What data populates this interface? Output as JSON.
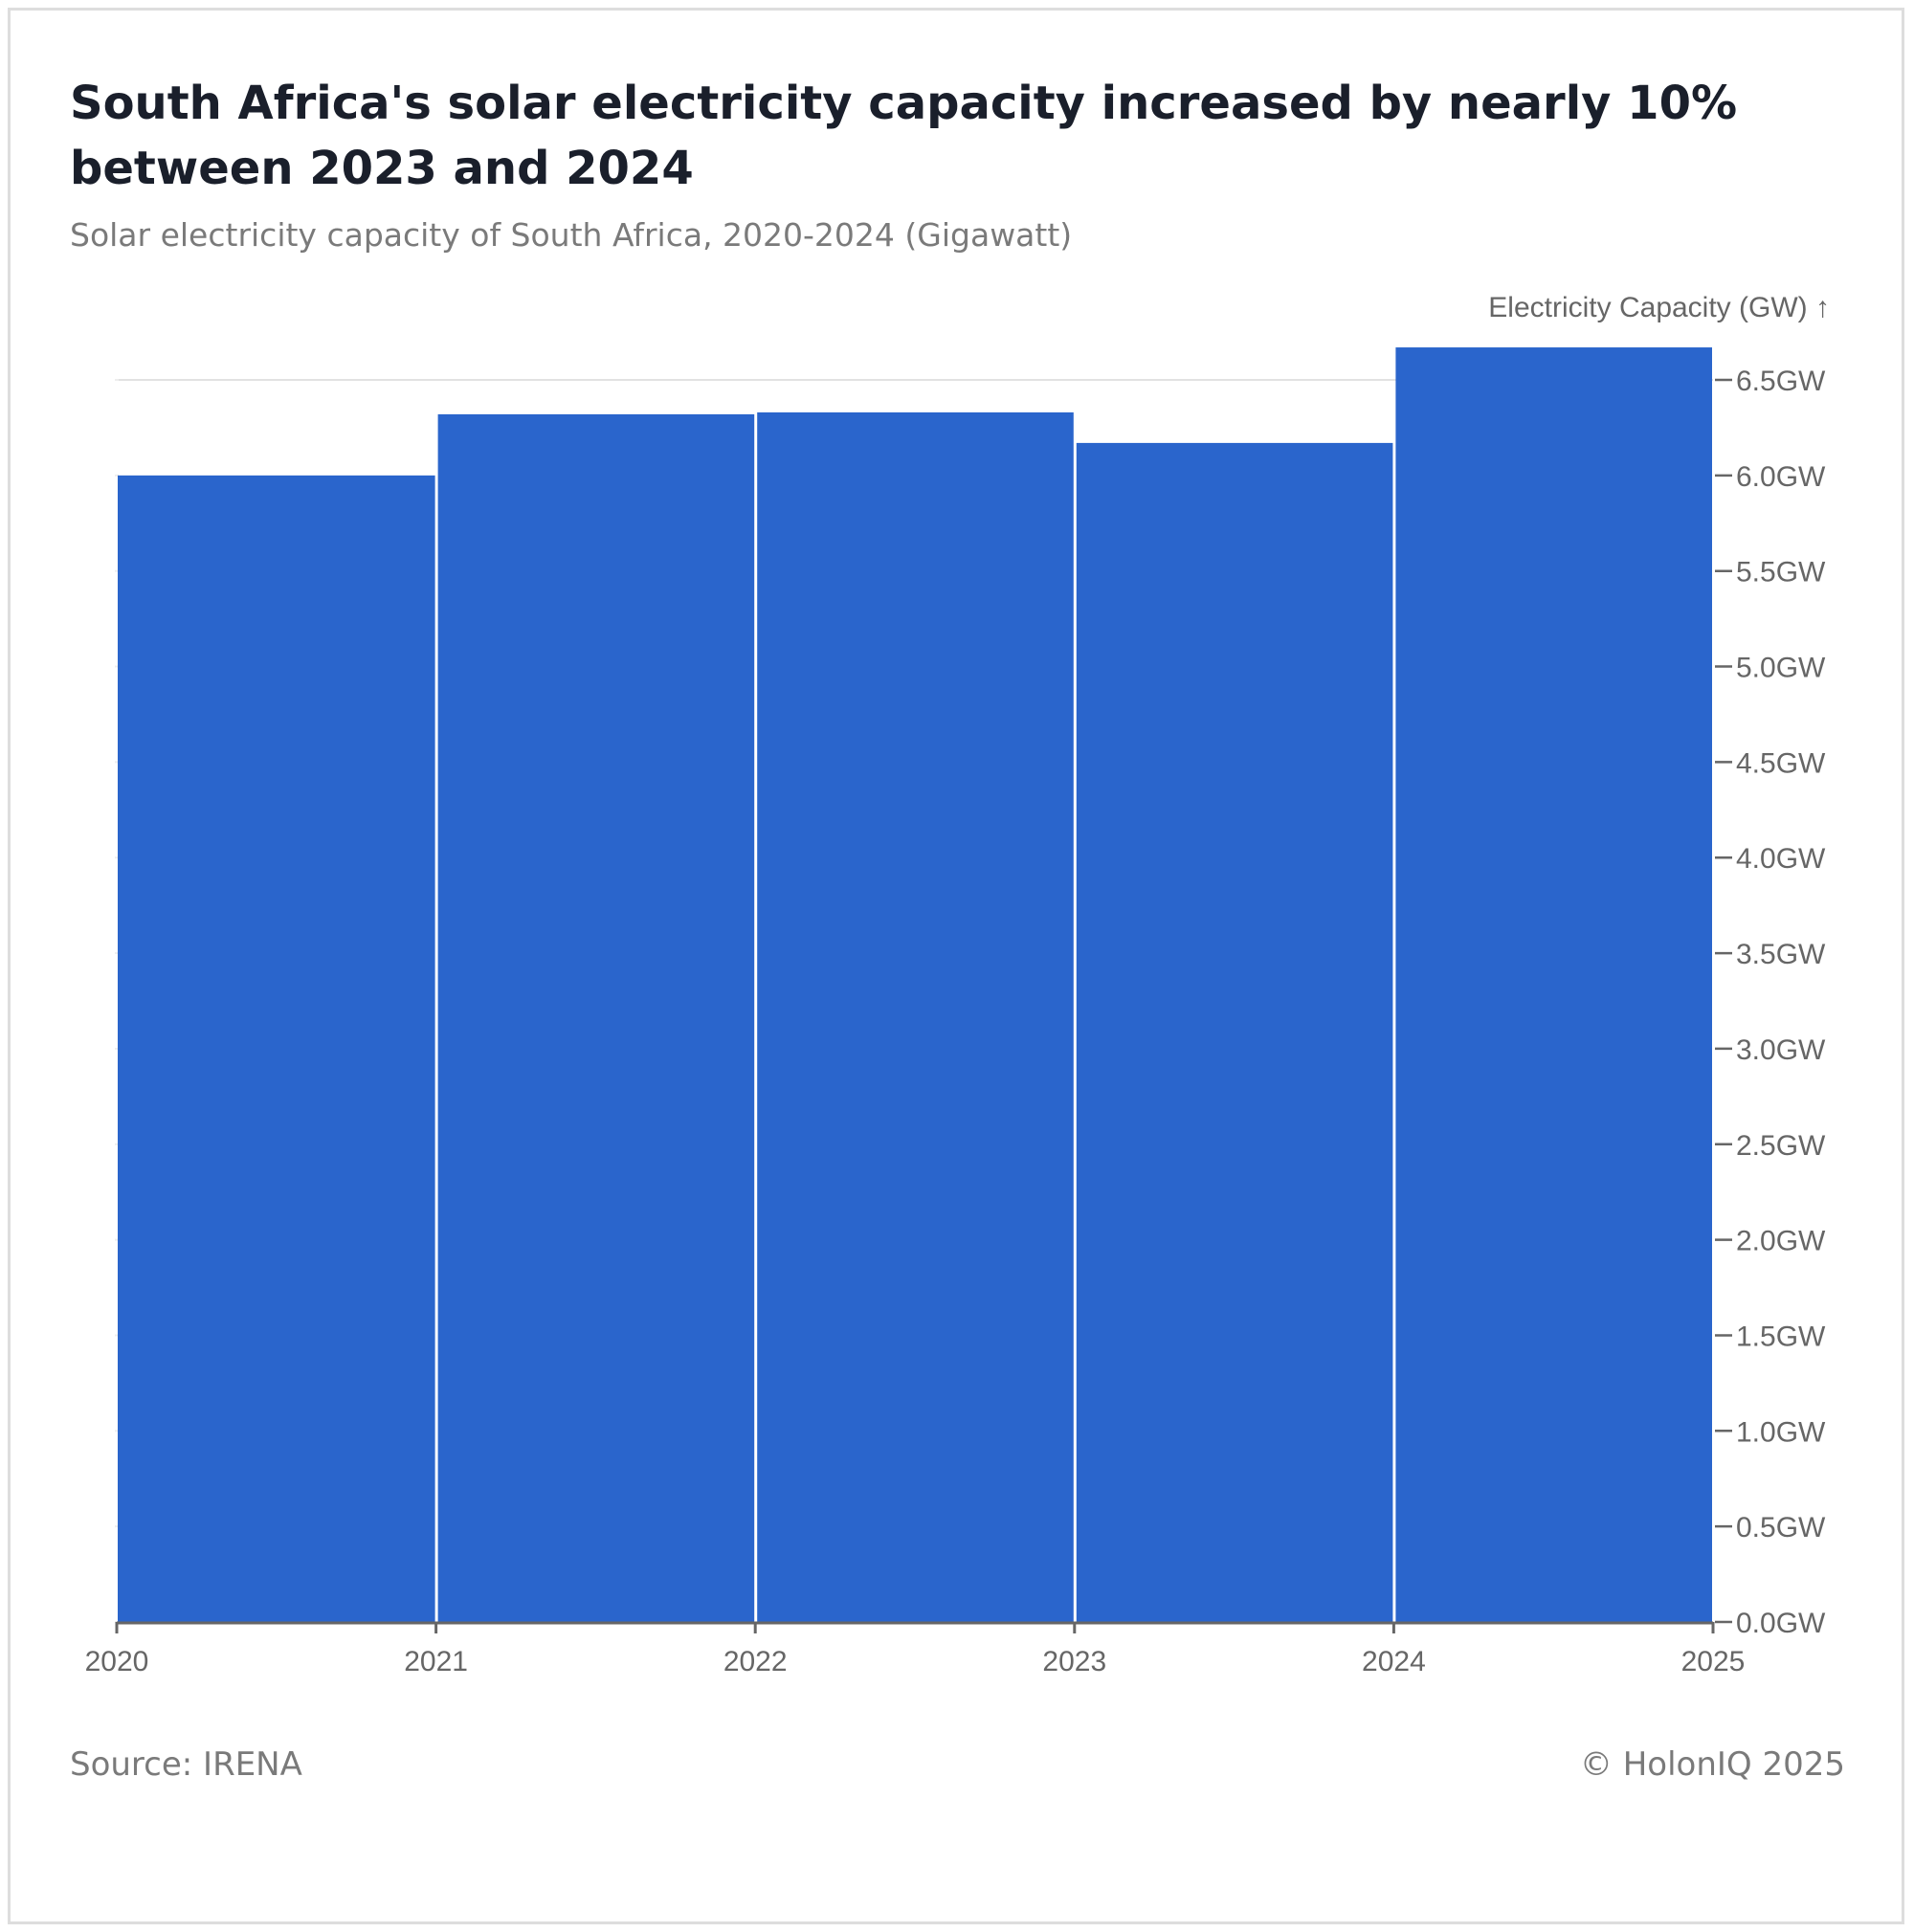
{
  "header": {
    "title": "South Africa's solar electricity capacity increased by nearly 10% between 2023 and 2024",
    "subtitle": "Solar electricity capacity of South Africa, 2020-2024 (Gigawatt)"
  },
  "footer": {
    "source": "Source: IRENA",
    "copyright": "© HolonIQ 2025"
  },
  "colors": {
    "bar": "#2a65cc",
    "axis": "#666666",
    "grid": "#e2e2e2"
  },
  "chart_data": {
    "type": "bar",
    "title": "South Africa's solar electricity capacity increased by nearly 10% between 2023 and 2024",
    "subtitle": "Solar electricity capacity of South Africa, 2020-2024 (Gigawatt)",
    "ylabel": "Electricity Capacity (GW) ↑",
    "xlabel": "",
    "unit": "GW",
    "categories": [
      "2020",
      "2021",
      "2022",
      "2023",
      "2024"
    ],
    "values": [
      6.0,
      6.32,
      6.33,
      6.17,
      6.67
    ],
    "x_ticks": [
      "2020",
      "2021",
      "2022",
      "2023",
      "2024",
      "2025"
    ],
    "y_ticks": [
      0,
      0.5,
      1.0,
      1.5,
      2.0,
      2.5,
      3.0,
      3.5,
      4.0,
      4.5,
      5.0,
      5.5,
      6.0,
      6.5
    ],
    "y_tick_labels": [
      "0.0GW",
      "0.5GW",
      "1.0GW",
      "1.5GW",
      "2.0GW",
      "2.5GW",
      "3.0GW",
      "3.5GW",
      "4.0GW",
      "4.5GW",
      "5.0GW",
      "5.5GW",
      "6.0GW",
      "6.5GW"
    ],
    "ylim": [
      0,
      6.5
    ],
    "y_axis_position": "right",
    "grid": "top gridline only",
    "source": "Source: IRENA"
  }
}
